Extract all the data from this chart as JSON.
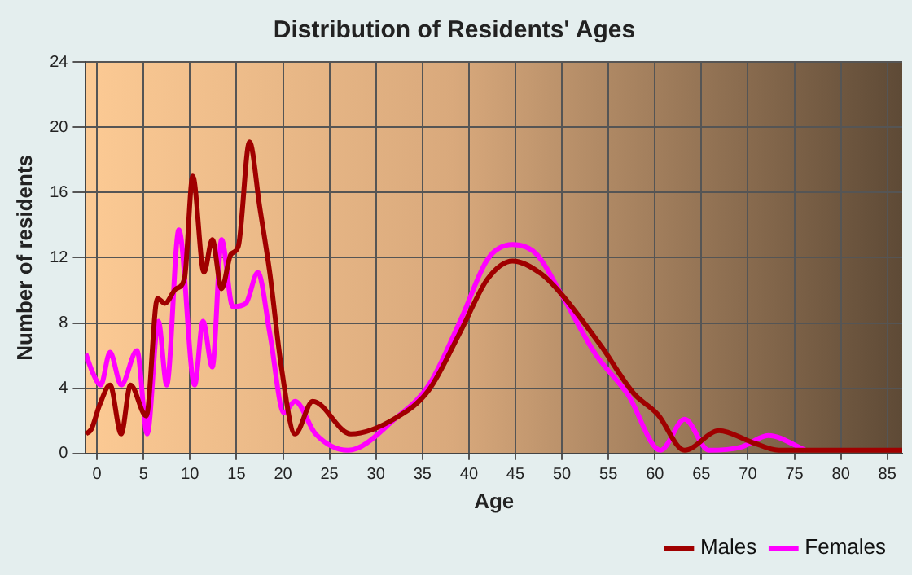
{
  "chart_data": {
    "type": "line",
    "title": "Distribution of Residents' Ages",
    "xlabel": "Age",
    "ylabel": "Number of residents",
    "xlim": [
      -1.2,
      86.6
    ],
    "xticks": [
      0,
      5,
      10,
      15,
      20,
      25,
      30,
      35,
      40,
      45,
      50,
      55,
      60,
      65,
      70,
      75,
      80,
      85
    ],
    "ylim": [
      0,
      24
    ],
    "yticks": [
      0,
      4,
      8,
      12,
      16,
      20,
      24
    ],
    "grid": true,
    "legend": "bottom right",
    "series": [
      {
        "name": "Males",
        "color": "#a00000",
        "x": [
          -1.2,
          -0.6,
          0.3,
          1.4,
          2.6,
          3.6,
          5.3,
          6.5,
          7.3,
          8.5,
          9.4,
          10.3,
          11.5,
          12.4,
          13.4,
          14.4,
          15.2,
          16.4,
          17.5,
          18.6,
          19.8,
          21.3,
          23.2,
          27.3,
          32.2,
          35.7,
          39.2,
          42,
          44.7,
          47.8,
          49.9,
          54.2,
          57.7,
          60.3,
          63.2,
          66.9,
          70.4,
          73.3,
          80,
          86.6
        ],
        "values": [
          1.2,
          1.5,
          3,
          4.2,
          1.2,
          4.2,
          2.3,
          9.5,
          9.2,
          10.1,
          10.7,
          17,
          11.1,
          13.1,
          10.1,
          12.2,
          12.7,
          19.1,
          15.1,
          11,
          5.4,
          1.2,
          3.2,
          1.2,
          2.2,
          3.9,
          7.6,
          10.7,
          11.8,
          11,
          9.8,
          6.6,
          3.7,
          2.4,
          0.2,
          1.4,
          0.7,
          0.2,
          0.2,
          0.2
        ]
      },
      {
        "name": "Females",
        "color": "#ff00ff",
        "x": [
          -1.2,
          -0.5,
          0.4,
          1.4,
          2.6,
          4.3,
          5.4,
          6.6,
          7.5,
          8.8,
          10.5,
          11.4,
          12.4,
          13.4,
          14.6,
          16,
          17.3,
          18.6,
          20.1,
          21.3,
          23.5,
          27,
          32.2,
          35.7,
          39.2,
          42,
          44.7,
          47.3,
          49.9,
          53.6,
          57.1,
          60.6,
          63.2,
          65.8,
          69.3,
          72.2,
          76.2
        ],
        "values": [
          6.1,
          5,
          4.2,
          6.2,
          4.2,
          6.3,
          1.2,
          8.1,
          4.2,
          13.7,
          4.2,
          8.1,
          5.3,
          13.1,
          9,
          9.2,
          11.1,
          7.3,
          2.5,
          3.2,
          1.2,
          0.2,
          2.2,
          4.2,
          8.3,
          11.9,
          12.8,
          12.2,
          9.8,
          6.1,
          3.6,
          0.2,
          2.1,
          0.2,
          0.4,
          1.1,
          0.2
        ]
      }
    ]
  }
}
